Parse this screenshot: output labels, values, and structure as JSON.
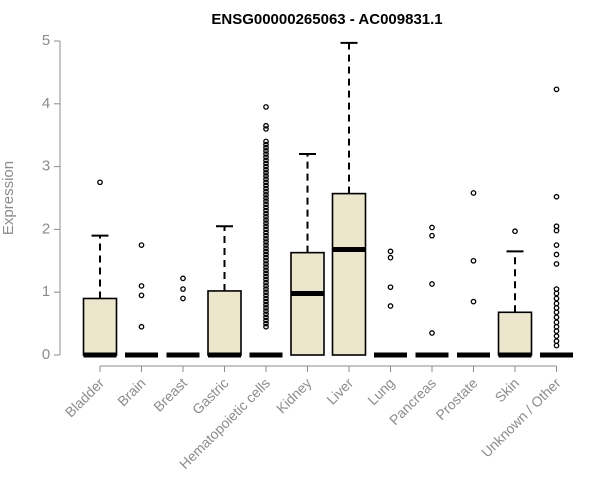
{
  "chart_data": {
    "type": "box",
    "title": "ENSG00000265063 - AC009831.1",
    "ylabel": "Expression",
    "xlabel": "",
    "ylim": [
      0,
      5
    ],
    "yticks": [
      0,
      1,
      2,
      3,
      4,
      5
    ],
    "grid": false,
    "fill_color": "#ece6cc",
    "categories": [
      "Bladder",
      "Brain",
      "Breast",
      "Gastric",
      "Hematopoietic cells",
      "Kidney",
      "Liver",
      "Lung",
      "Pancreas",
      "Prostate",
      "Skin",
      "Unknown / Other"
    ],
    "boxes": [
      {
        "category": "Bladder",
        "q1": 0,
        "median": 0,
        "q3": 0.9,
        "whisker_low": 0,
        "whisker_high": 1.9,
        "outliers": [
          2.75
        ]
      },
      {
        "category": "Brain",
        "q1": 0,
        "median": 0,
        "q3": 0,
        "whisker_low": 0,
        "whisker_high": 0,
        "outliers": [
          0.45,
          0.95,
          1.1,
          1.75
        ]
      },
      {
        "category": "Breast",
        "q1": 0,
        "median": 0,
        "q3": 0,
        "whisker_low": 0,
        "whisker_high": 0,
        "outliers": [
          0.9,
          1.05,
          1.22
        ]
      },
      {
        "category": "Gastric",
        "q1": 0,
        "median": 0,
        "q3": 1.02,
        "whisker_low": 0,
        "whisker_high": 2.05,
        "outliers": []
      },
      {
        "category": "Hematopoietic cells",
        "q1": 0,
        "median": 0,
        "q3": 0,
        "whisker_low": 0,
        "whisker_high": 0,
        "outliers": [
          0.45,
          0.5,
          0.55,
          0.6,
          0.65,
          0.7,
          0.75,
          0.8,
          0.85,
          0.9,
          0.95,
          1.0,
          1.05,
          1.1,
          1.15,
          1.2,
          1.25,
          1.3,
          1.35,
          1.4,
          1.45,
          1.5,
          1.55,
          1.6,
          1.65,
          1.7,
          1.75,
          1.8,
          1.85,
          1.9,
          1.95,
          2.0,
          2.05,
          2.1,
          2.15,
          2.2,
          2.25,
          2.3,
          2.35,
          2.4,
          2.45,
          2.5,
          2.55,
          2.6,
          2.65,
          2.7,
          2.75,
          2.8,
          2.85,
          2.9,
          2.95,
          3.0,
          3.05,
          3.1,
          3.15,
          3.2,
          3.25,
          3.3,
          3.35,
          3.4,
          3.6,
          3.65,
          3.95
        ]
      },
      {
        "category": "Kidney",
        "q1": 0,
        "median": 0.98,
        "q3": 1.63,
        "whisker_low": 0,
        "whisker_high": 3.2,
        "outliers": []
      },
      {
        "category": "Liver",
        "q1": 0,
        "median": 1.68,
        "q3": 2.57,
        "whisker_low": 0,
        "whisker_high": 4.97,
        "outliers": []
      },
      {
        "category": "Lung",
        "q1": 0,
        "median": 0,
        "q3": 0,
        "whisker_low": 0,
        "whisker_high": 0,
        "outliers": [
          0.78,
          1.08,
          1.55,
          1.65
        ]
      },
      {
        "category": "Pancreas",
        "q1": 0,
        "median": 0,
        "q3": 0,
        "whisker_low": 0,
        "whisker_high": 0,
        "outliers": [
          0.35,
          1.13,
          1.9,
          2.03
        ]
      },
      {
        "category": "Prostate",
        "q1": 0,
        "median": 0,
        "q3": 0,
        "whisker_low": 0,
        "whisker_high": 0,
        "outliers": [
          0.85,
          1.5,
          2.58
        ]
      },
      {
        "category": "Skin",
        "q1": 0,
        "median": 0,
        "q3": 0.68,
        "whisker_low": 0,
        "whisker_high": 1.65,
        "outliers": [
          1.97
        ]
      },
      {
        "category": "Unknown / Other",
        "q1": 0,
        "median": 0,
        "q3": 0,
        "whisker_low": 0,
        "whisker_high": 0,
        "outliers": [
          0.15,
          0.22,
          0.3,
          0.38,
          0.45,
          0.52,
          0.6,
          0.68,
          0.75,
          0.82,
          0.9,
          0.98,
          1.05,
          1.45,
          1.6,
          1.75,
          1.98,
          2.05,
          2.52,
          4.23
        ]
      }
    ]
  }
}
